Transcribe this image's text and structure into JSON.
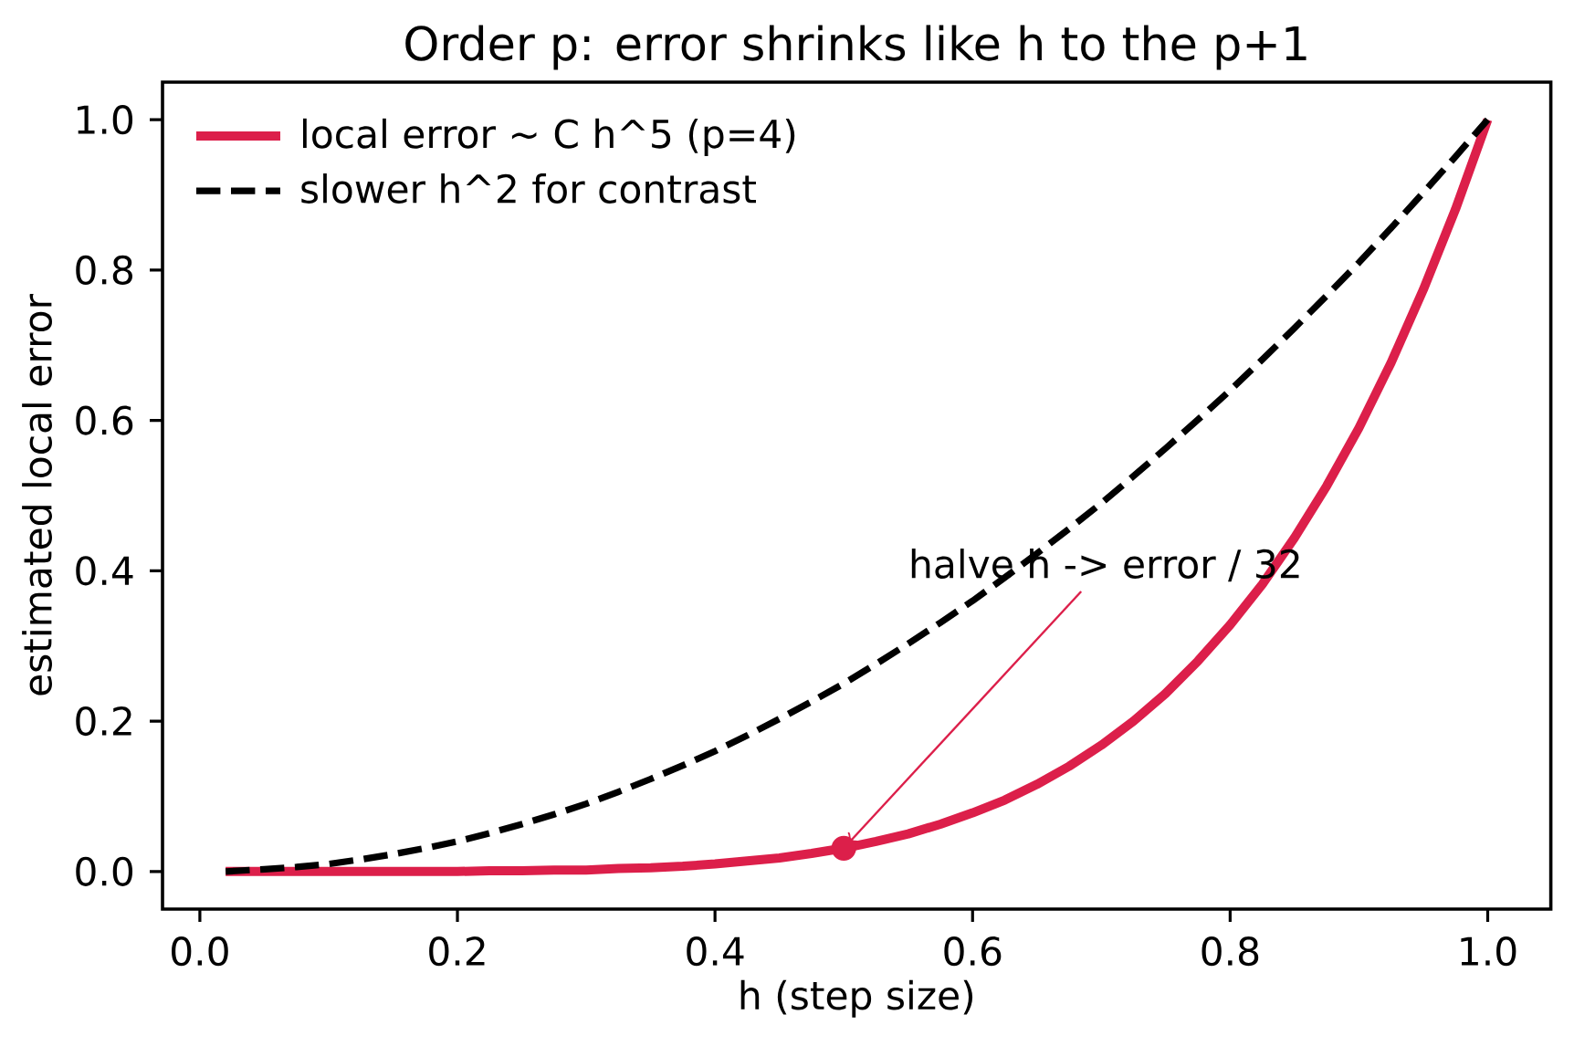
{
  "chart_data": {
    "type": "line",
    "title": "Order p: error shrinks like h to the p+1",
    "xlabel": "h (step size)",
    "ylabel": "estimated local error",
    "x": [
      0.02,
      0.05,
      0.075,
      0.1,
      0.125,
      0.15,
      0.175,
      0.2,
      0.225,
      0.25,
      0.275,
      0.3,
      0.325,
      0.35,
      0.375,
      0.4,
      0.425,
      0.45,
      0.475,
      0.5,
      0.525,
      0.55,
      0.575,
      0.6,
      0.625,
      0.65,
      0.675,
      0.7,
      0.725,
      0.75,
      0.775,
      0.8,
      0.825,
      0.85,
      0.875,
      0.9,
      0.925,
      0.95,
      0.975,
      1.0
    ],
    "series": [
      {
        "name": "local error ~ C h^5 (p=4)",
        "color": "#dc1f4a",
        "line_style": "solid",
        "values": [
          0,
          0,
          0,
          0,
          0,
          0,
          0,
          0,
          0.001,
          0.001,
          0.002,
          0.002,
          0.004,
          0.005,
          0.007,
          0.01,
          0.014,
          0.018,
          0.024,
          0.031,
          0.04,
          0.05,
          0.063,
          0.078,
          0.095,
          0.116,
          0.14,
          0.168,
          0.2,
          0.237,
          0.28,
          0.328,
          0.382,
          0.444,
          0.513,
          0.59,
          0.677,
          0.774,
          0.881,
          1.0
        ]
      },
      {
        "name": "slower h^2 for contrast",
        "color": "#000000",
        "line_style": "dashed",
        "values": [
          0,
          0.003,
          0.006,
          0.01,
          0.016,
          0.023,
          0.031,
          0.04,
          0.051,
          0.063,
          0.076,
          0.09,
          0.106,
          0.123,
          0.141,
          0.16,
          0.181,
          0.203,
          0.226,
          0.25,
          0.276,
          0.303,
          0.331,
          0.36,
          0.391,
          0.423,
          0.456,
          0.49,
          0.526,
          0.563,
          0.601,
          0.64,
          0.681,
          0.723,
          0.766,
          0.81,
          0.856,
          0.903,
          0.951,
          1.0
        ]
      },
      {
        "type": "scatter",
        "color": "#dc1f4a",
        "marker": "circle",
        "x": [
          0.5
        ],
        "values": [
          0.031
        ]
      }
    ],
    "annotations": [
      {
        "text": "halve h -> error / 32",
        "x": 0.5,
        "y": 0.031
      }
    ],
    "xlim": [
      -0.029,
      1.049
    ],
    "ylim": [
      -0.05,
      1.05
    ],
    "xticks": [
      {
        "value": 0,
        "label": "0.0"
      },
      0.2,
      0.4,
      0.6,
      0.8,
      {
        "value": 1,
        "label": "1.0"
      }
    ],
    "yticks": [
      {
        "value": 0,
        "label": "0.0"
      },
      0.2,
      0.4,
      0.6,
      0.8,
      {
        "value": 1,
        "label": "1.0"
      }
    ],
    "legend": "top left",
    "marker": "none"
  }
}
